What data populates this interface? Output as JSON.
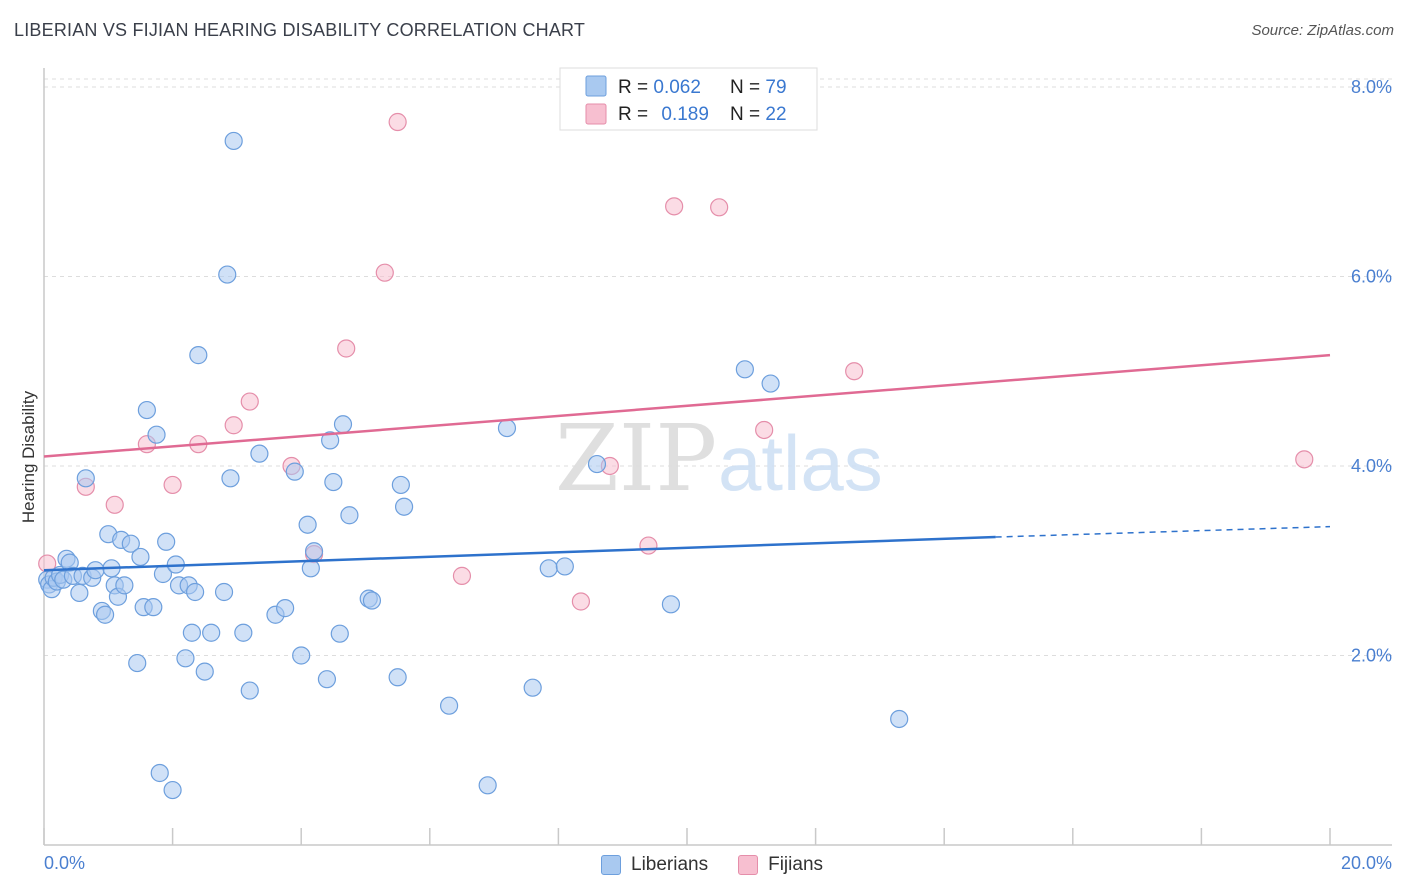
{
  "header": {
    "title": "LIBERIAN VS FIJIAN HEARING DISABILITY CORRELATION CHART",
    "source": "Source: ZipAtlas.com"
  },
  "watermark": {
    "zip": "ZIP",
    "atlas": "atlas"
  },
  "colors": {
    "liberians_fill": "#a9c9f0",
    "liberians_stroke": "#6d9fdd",
    "liberians_line": "#2e72cc",
    "fijians_fill": "#f7bfd0",
    "fijians_stroke": "#e58eaa",
    "fijians_line": "#e06a93",
    "tick_label": "#4a7fd0",
    "grid": "#dddddd"
  },
  "chart_data": {
    "type": "scatter",
    "title": "LIBERIAN VS FIJIAN HEARING DISABILITY CORRELATION CHART",
    "xlabel": "",
    "ylabel": "Hearing Disability",
    "xlim": [
      0,
      20
    ],
    "ylim": [
      0,
      8.2
    ],
    "x_tick_labels": [
      "0.0%",
      "20.0%"
    ],
    "y_ticks": [
      2,
      4,
      6,
      8
    ],
    "y_tick_labels": [
      "2.0%",
      "4.0%",
      "6.0%",
      "8.0%"
    ],
    "grid": true,
    "legend_position": "top-center",
    "legend": {
      "stats": [
        {
          "r_label": "R = ",
          "r_value": "0.062",
          "n_label": "N = ",
          "n_value": "79"
        },
        {
          "r_label": "R = ",
          "r_value": "0.189",
          "n_label": "N = ",
          "n_value": "22"
        }
      ],
      "entries": [
        "Liberians",
        "Fijians"
      ]
    },
    "series": [
      {
        "name": "Liberians",
        "trend": {
          "x0": 0,
          "y0": 2.9,
          "x1": 14.8,
          "y1": 3.25,
          "dash_x1": 20,
          "dash_y1": 3.36
        },
        "points": [
          [
            0.05,
            2.8
          ],
          [
            0.08,
            2.75
          ],
          [
            0.12,
            2.7
          ],
          [
            0.15,
            2.82
          ],
          [
            0.2,
            2.78
          ],
          [
            0.25,
            2.85
          ],
          [
            0.3,
            2.8
          ],
          [
            0.35,
            3.02
          ],
          [
            0.4,
            2.98
          ],
          [
            0.45,
            2.84
          ],
          [
            0.55,
            2.66
          ],
          [
            0.6,
            2.84
          ],
          [
            0.65,
            3.87
          ],
          [
            0.75,
            2.82
          ],
          [
            0.8,
            2.9
          ],
          [
            0.9,
            2.47
          ],
          [
            0.95,
            2.43
          ],
          [
            1.0,
            3.28
          ],
          [
            1.05,
            2.92
          ],
          [
            1.1,
            2.74
          ],
          [
            1.15,
            2.62
          ],
          [
            1.2,
            3.22
          ],
          [
            1.25,
            2.74
          ],
          [
            1.35,
            3.18
          ],
          [
            1.45,
            1.92
          ],
          [
            1.5,
            3.04
          ],
          [
            1.55,
            2.51
          ],
          [
            1.6,
            4.59
          ],
          [
            1.7,
            2.51
          ],
          [
            1.75,
            4.33
          ],
          [
            1.8,
            0.76
          ],
          [
            1.85,
            2.86
          ],
          [
            1.9,
            3.2
          ],
          [
            2.0,
            0.58
          ],
          [
            2.05,
            2.96
          ],
          [
            2.1,
            2.74
          ],
          [
            2.2,
            1.97
          ],
          [
            2.25,
            2.74
          ],
          [
            2.3,
            2.24
          ],
          [
            2.35,
            2.67
          ],
          [
            2.4,
            5.17
          ],
          [
            2.5,
            1.83
          ],
          [
            2.6,
            2.24
          ],
          [
            2.8,
            2.67
          ],
          [
            2.85,
            6.02
          ],
          [
            2.9,
            3.87
          ],
          [
            2.95,
            7.43
          ],
          [
            3.1,
            2.24
          ],
          [
            3.2,
            1.63
          ],
          [
            3.35,
            4.13
          ],
          [
            3.6,
            2.43
          ],
          [
            3.75,
            2.5
          ],
          [
            3.9,
            3.94
          ],
          [
            4.0,
            2.0
          ],
          [
            4.1,
            3.38
          ],
          [
            4.15,
            2.92
          ],
          [
            4.2,
            3.1
          ],
          [
            4.4,
            1.75
          ],
          [
            4.45,
            4.27
          ],
          [
            4.5,
            3.83
          ],
          [
            4.6,
            2.23
          ],
          [
            4.65,
            4.44
          ],
          [
            4.75,
            3.48
          ],
          [
            5.05,
            2.6
          ],
          [
            5.1,
            2.58
          ],
          [
            5.5,
            1.77
          ],
          [
            5.55,
            3.8
          ],
          [
            5.6,
            3.57
          ],
          [
            6.3,
            1.47
          ],
          [
            6.9,
            0.63
          ],
          [
            7.2,
            4.4
          ],
          [
            7.6,
            1.66
          ],
          [
            7.85,
            2.92
          ],
          [
            8.1,
            2.94
          ],
          [
            8.6,
            4.02
          ],
          [
            9.75,
            2.54
          ],
          [
            10.9,
            5.02
          ],
          [
            11.3,
            4.87
          ],
          [
            13.3,
            1.33
          ]
        ]
      },
      {
        "name": "Fijians",
        "trend": {
          "x0": 0,
          "y0": 4.1,
          "x1": 20,
          "y1": 5.17
        },
        "points": [
          [
            0.05,
            2.97
          ],
          [
            0.65,
            3.78
          ],
          [
            1.1,
            3.59
          ],
          [
            1.6,
            4.23
          ],
          [
            2.0,
            3.8
          ],
          [
            2.4,
            4.23
          ],
          [
            2.95,
            4.43
          ],
          [
            3.2,
            4.68
          ],
          [
            3.85,
            4.0
          ],
          [
            4.2,
            3.07
          ],
          [
            4.7,
            5.24
          ],
          [
            5.3,
            6.04
          ],
          [
            5.5,
            7.63
          ],
          [
            6.5,
            2.84
          ],
          [
            8.35,
            2.57
          ],
          [
            8.8,
            4.0
          ],
          [
            9.4,
            3.16
          ],
          [
            9.8,
            6.74
          ],
          [
            10.5,
            6.73
          ],
          [
            11.2,
            4.38
          ],
          [
            12.6,
            5.0
          ],
          [
            19.6,
            4.07
          ]
        ]
      }
    ]
  }
}
